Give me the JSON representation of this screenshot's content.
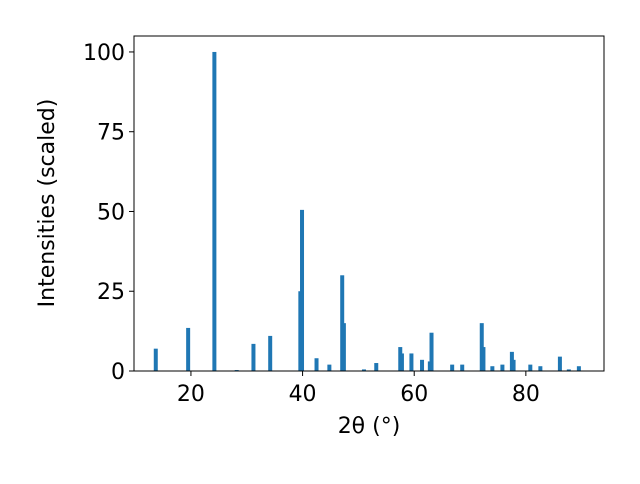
{
  "chart_data": {
    "type": "bar",
    "xlabel": "2θ (°)",
    "ylabel": "Intensities (scaled)",
    "color": "#1f77b4",
    "x": [
      13.7,
      19.5,
      24.2,
      28.2,
      31.2,
      34.2,
      39.6,
      39.9,
      42.5,
      44.8,
      47.1,
      47.4,
      51.0,
      53.2,
      57.5,
      57.8,
      59.5,
      61.4,
      62.8,
      63.1,
      66.8,
      68.6,
      72.1,
      72.4,
      74.0,
      75.8,
      77.5,
      77.8,
      80.8,
      82.6,
      86.1,
      87.7,
      89.5
    ],
    "values": [
      7,
      13.5,
      100,
      0.3,
      8.5,
      11,
      25,
      50.5,
      4,
      2,
      30,
      15,
      0.5,
      2.5,
      7.5,
      5.5,
      5.5,
      3.5,
      3,
      12,
      2,
      2,
      15,
      7.5,
      1.5,
      2,
      6,
      3.5,
      2,
      1.5,
      4.5,
      0.5,
      1.5
    ],
    "xlim": [
      9.8,
      94.0
    ],
    "ylim": [
      0,
      105
    ],
    "xticks": [
      20,
      40,
      60,
      80
    ],
    "yticks": [
      0,
      25,
      50,
      75,
      100
    ]
  }
}
